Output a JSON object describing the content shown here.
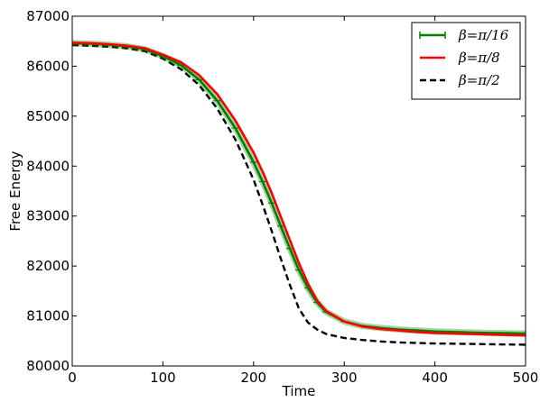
{
  "chart_data": {
    "type": "line",
    "title": "",
    "xlabel": "Time",
    "ylabel": "Free Energy",
    "xlim": [
      0,
      500
    ],
    "ylim": [
      80000,
      87000
    ],
    "xticks": [
      0,
      100,
      200,
      300,
      400,
      500
    ],
    "yticks": [
      80000,
      81000,
      82000,
      83000,
      84000,
      85000,
      86000,
      87000
    ],
    "grid": false,
    "legend_position": "top-right",
    "series": [
      {
        "name": "β=π/16",
        "color": "#008000",
        "style": "solid-with-markers",
        "x": [
          0,
          20,
          40,
          60,
          80,
          100,
          120,
          140,
          160,
          180,
          200,
          210,
          220,
          230,
          240,
          250,
          260,
          270,
          280,
          300,
          320,
          340,
          360,
          380,
          400,
          420,
          440,
          460,
          480,
          500
        ],
        "y": [
          86460,
          86450,
          86430,
          86400,
          86340,
          86200,
          86020,
          85730,
          85310,
          84760,
          84080,
          83690,
          83260,
          82800,
          82350,
          81920,
          81560,
          81270,
          81080,
          80890,
          80800,
          80760,
          80730,
          80710,
          80690,
          80680,
          80670,
          80660,
          80655,
          80650
        ]
      },
      {
        "name": "β=π/8",
        "color": "#ff0000",
        "style": "solid",
        "x": [
          0,
          20,
          40,
          60,
          80,
          100,
          120,
          140,
          160,
          180,
          200,
          210,
          220,
          230,
          240,
          250,
          260,
          270,
          280,
          300,
          320,
          340,
          360,
          380,
          400,
          420,
          440,
          460,
          480,
          500
        ],
        "y": [
          86470,
          86460,
          86440,
          86410,
          86360,
          86230,
          86080,
          85820,
          85440,
          84910,
          84270,
          83890,
          83460,
          82990,
          82520,
          82060,
          81650,
          81310,
          81100,
          80890,
          80790,
          80740,
          80710,
          80680,
          80660,
          80650,
          80640,
          80630,
          80620,
          80610
        ]
      },
      {
        "name": "β=π/2",
        "color": "#000000",
        "style": "dashed",
        "x": [
          0,
          20,
          40,
          60,
          80,
          100,
          120,
          140,
          160,
          180,
          200,
          210,
          220,
          230,
          240,
          250,
          260,
          270,
          280,
          300,
          320,
          340,
          360,
          380,
          400,
          420,
          440,
          460,
          480,
          500
        ],
        "y": [
          86420,
          86410,
          86390,
          86360,
          86300,
          86150,
          85940,
          85620,
          85150,
          84530,
          83730,
          83230,
          82700,
          82150,
          81620,
          81150,
          80870,
          80730,
          80640,
          80560,
          80520,
          80490,
          80470,
          80460,
          80450,
          80445,
          80440,
          80435,
          80430,
          80425
        ]
      }
    ]
  }
}
